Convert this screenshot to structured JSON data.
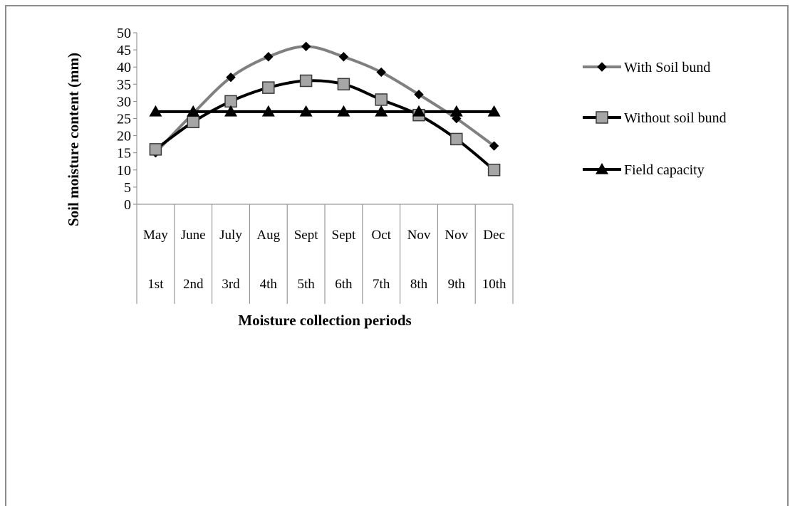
{
  "chart_data": {
    "type": "line",
    "ylabel": "Soil moisture content (mm)",
    "xlabel": "Moisture collection periods",
    "ylim": [
      0,
      50
    ],
    "y_ticks": [
      "0",
      "5",
      "10",
      "15",
      "20",
      "25",
      "30",
      "35",
      "40",
      "45",
      "50"
    ],
    "categories_month": [
      "May",
      "June",
      "July",
      "Aug",
      "Sept",
      "Sept",
      "Oct",
      "Nov",
      "Nov",
      "Dec"
    ],
    "categories_period": [
      "1st",
      "2nd",
      "3rd",
      "4th",
      "5th",
      "6th",
      "7th",
      "8th",
      "9th",
      "10th"
    ],
    "series": [
      {
        "name": "With Soil bund",
        "values": [
          15,
          26.5,
          37,
          43,
          46,
          43,
          38.5,
          32,
          25,
          17
        ],
        "color": "#808080",
        "marker": "diamond"
      },
      {
        "name": "Without soil bund",
        "values": [
          16,
          24,
          30,
          34,
          36,
          35,
          30.5,
          26,
          19,
          10
        ],
        "color": "#000000",
        "marker": "square"
      },
      {
        "name": "Field capacity",
        "values": [
          27,
          27,
          27,
          27,
          27,
          27,
          27,
          27,
          27,
          27
        ],
        "color": "#000000",
        "marker": "triangle"
      }
    ],
    "legend_position": "right",
    "grid": false
  }
}
